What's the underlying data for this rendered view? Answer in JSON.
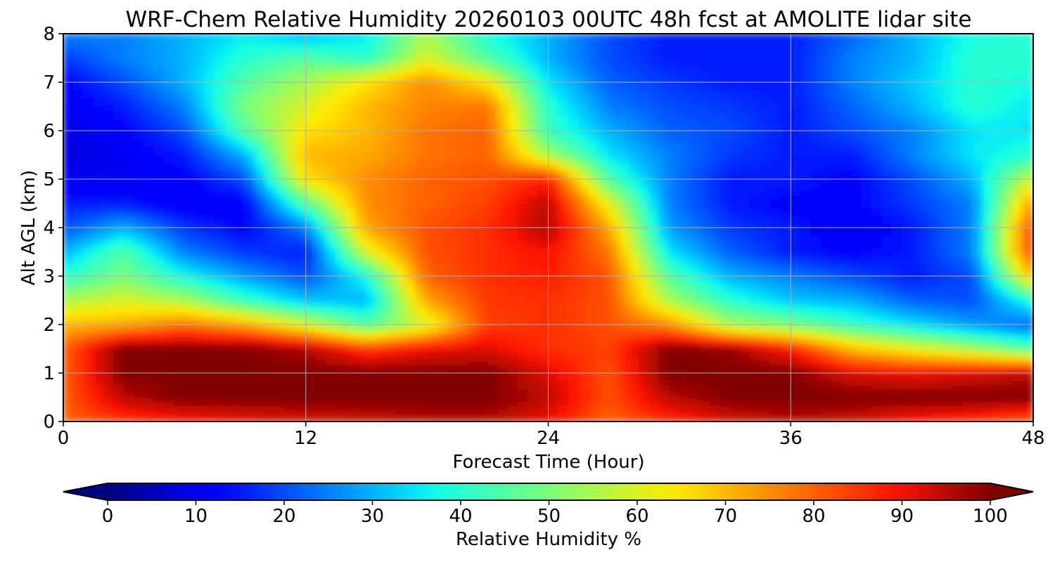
{
  "chart_data": {
    "type": "heatmap",
    "title": "WRF-Chem Relative Humidity 20260103 00UTC 48h fcst at AMOLITE lidar site",
    "xlabel": "Forecast Time (Hour)",
    "ylabel": "Alt AGL (km)",
    "xlim": [
      0,
      48
    ],
    "ylim": [
      0,
      8
    ],
    "x_ticks": [
      "0",
      "12",
      "24",
      "36",
      "48"
    ],
    "y_ticks": [
      "0",
      "1",
      "2",
      "3",
      "4",
      "5",
      "6",
      "7",
      "8"
    ],
    "grid": true,
    "colorbar": {
      "label": "Relative Humidity %",
      "range": [
        0,
        100
      ],
      "extend": "both",
      "ticks": [
        "0",
        "10",
        "20",
        "30",
        "40",
        "50",
        "60",
        "70",
        "80",
        "90",
        "100"
      ],
      "colormap": "jet"
    },
    "x": [
      0,
      3,
      6,
      9,
      12,
      15,
      18,
      21,
      24,
      27,
      30,
      33,
      36,
      39,
      42,
      45,
      48
    ],
    "y": [
      0,
      0.5,
      1,
      1.5,
      2,
      2.5,
      3,
      3.5,
      4,
      4.5,
      5,
      5.5,
      6,
      6.5,
      7,
      7.5,
      8
    ],
    "z": [
      [
        80,
        85,
        88,
        90,
        92,
        93,
        95,
        95,
        90,
        80,
        86,
        92,
        95,
        93,
        88,
        85,
        80
      ],
      [
        80,
        95,
        100,
        100,
        100,
        100,
        100,
        100,
        95,
        82,
        95,
        100,
        100,
        100,
        100,
        100,
        100
      ],
      [
        80,
        100,
        100,
        100,
        100,
        100,
        100,
        100,
        92,
        82,
        100,
        100,
        100,
        92,
        90,
        92,
        95
      ],
      [
        80,
        100,
        100,
        100,
        96,
        85,
        90,
        92,
        86,
        84,
        100,
        98,
        88,
        70,
        62,
        55,
        45
      ],
      [
        70,
        72,
        78,
        72,
        60,
        45,
        60,
        84,
        86,
        82,
        75,
        55,
        50,
        42,
        35,
        28,
        22
      ],
      [
        55,
        60,
        55,
        42,
        32,
        30,
        72,
        85,
        86,
        82,
        55,
        40,
        32,
        30,
        22,
        20,
        40
      ],
      [
        40,
        50,
        38,
        28,
        20,
        38,
        80,
        86,
        88,
        82,
        45,
        30,
        25,
        20,
        15,
        20,
        70
      ],
      [
        30,
        45,
        25,
        18,
        15,
        60,
        82,
        86,
        90,
        78,
        35,
        22,
        15,
        12,
        15,
        25,
        85
      ],
      [
        20,
        30,
        18,
        12,
        25,
        72,
        82,
        86,
        96,
        72,
        28,
        18,
        15,
        10,
        15,
        25,
        85
      ],
      [
        15,
        15,
        10,
        12,
        45,
        75,
        80,
        84,
        95,
        62,
        25,
        15,
        12,
        12,
        18,
        25,
        75
      ],
      [
        10,
        10,
        12,
        20,
        65,
        75,
        80,
        82,
        88,
        45,
        25,
        15,
        15,
        12,
        20,
        30,
        60
      ],
      [
        8,
        10,
        15,
        30,
        70,
        72,
        78,
        80,
        55,
        35,
        25,
        18,
        15,
        15,
        25,
        35,
        40
      ],
      [
        8,
        12,
        20,
        45,
        65,
        70,
        78,
        80,
        42,
        30,
        22,
        20,
        15,
        20,
        25,
        35,
        35
      ],
      [
        10,
        15,
        25,
        50,
        60,
        70,
        76,
        78,
        40,
        25,
        20,
        18,
        15,
        22,
        30,
        40,
        35
      ],
      [
        12,
        20,
        30,
        45,
        55,
        65,
        75,
        65,
        35,
        22,
        18,
        15,
        15,
        25,
        32,
        40,
        38
      ],
      [
        18,
        25,
        30,
        40,
        45,
        40,
        60,
        45,
        30,
        20,
        15,
        15,
        15,
        25,
        30,
        40,
        40
      ],
      [
        25,
        25,
        30,
        35,
        30,
        35,
        55,
        38,
        30,
        20,
        15,
        15,
        15,
        22,
        30,
        38,
        40
      ]
    ]
  }
}
